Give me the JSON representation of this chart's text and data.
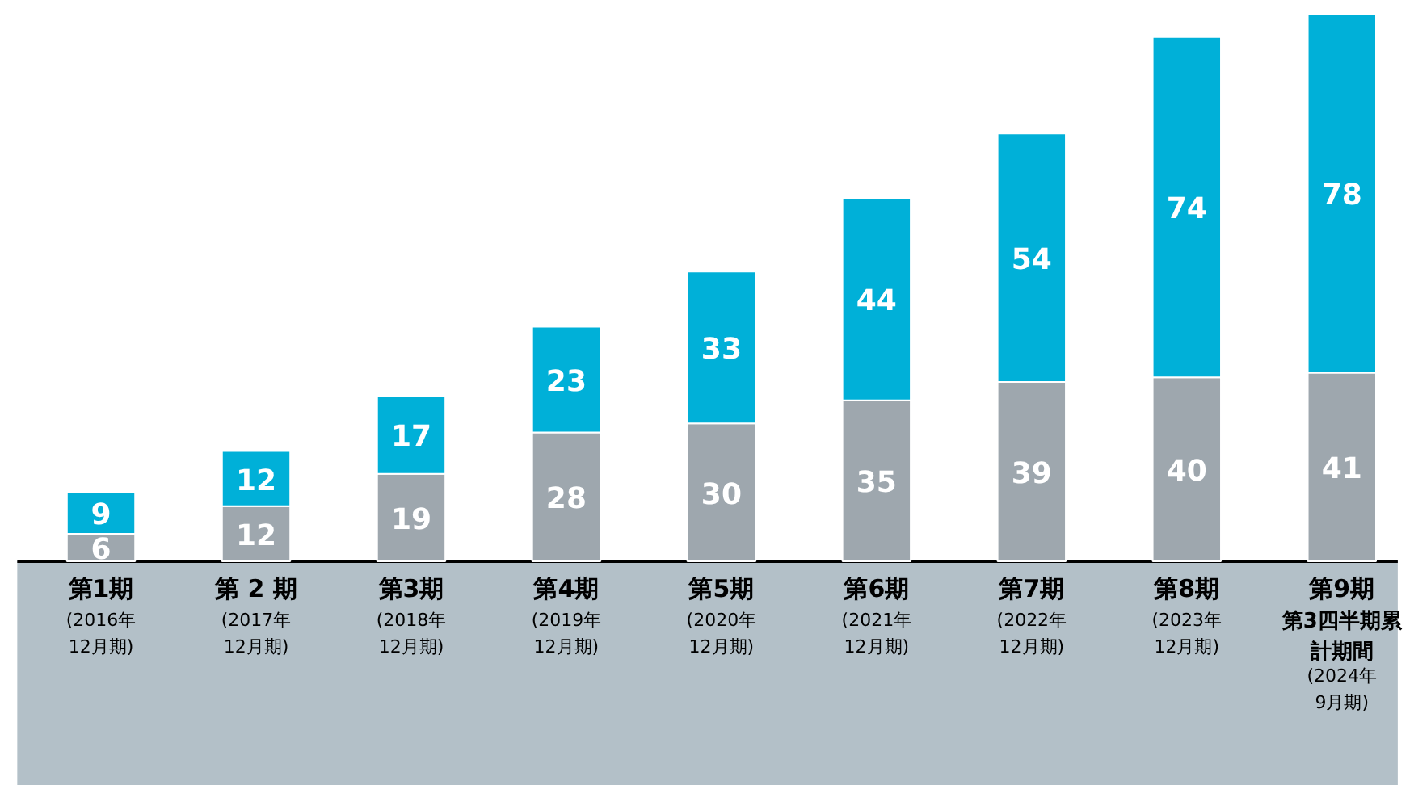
{
  "chart_data": {
    "type": "bar",
    "stacked": true,
    "data_labels": true,
    "categories": [
      "第1期\n(2016年12月期)",
      "第 2 期\n(2017年12月期)",
      "第3期\n(2018年12月期)",
      "第4期\n(2019年12月期)",
      "第5期\n(2020年12月期)",
      "第6期\n(2021年12月期)",
      "第7期\n(2022年12月期)",
      "第8期\n(2023年12月期)",
      "第9期第3四半期累計期間\n(2024年9月期)"
    ],
    "series": [
      {
        "color": "#9ea7ae",
        "values": [
          6,
          12,
          19,
          28,
          30,
          35,
          39,
          40,
          41
        ]
      },
      {
        "color": "#00b0d8",
        "values": [
          9,
          12,
          17,
          23,
          33,
          44,
          54,
          74,
          78
        ]
      }
    ]
  }
}
